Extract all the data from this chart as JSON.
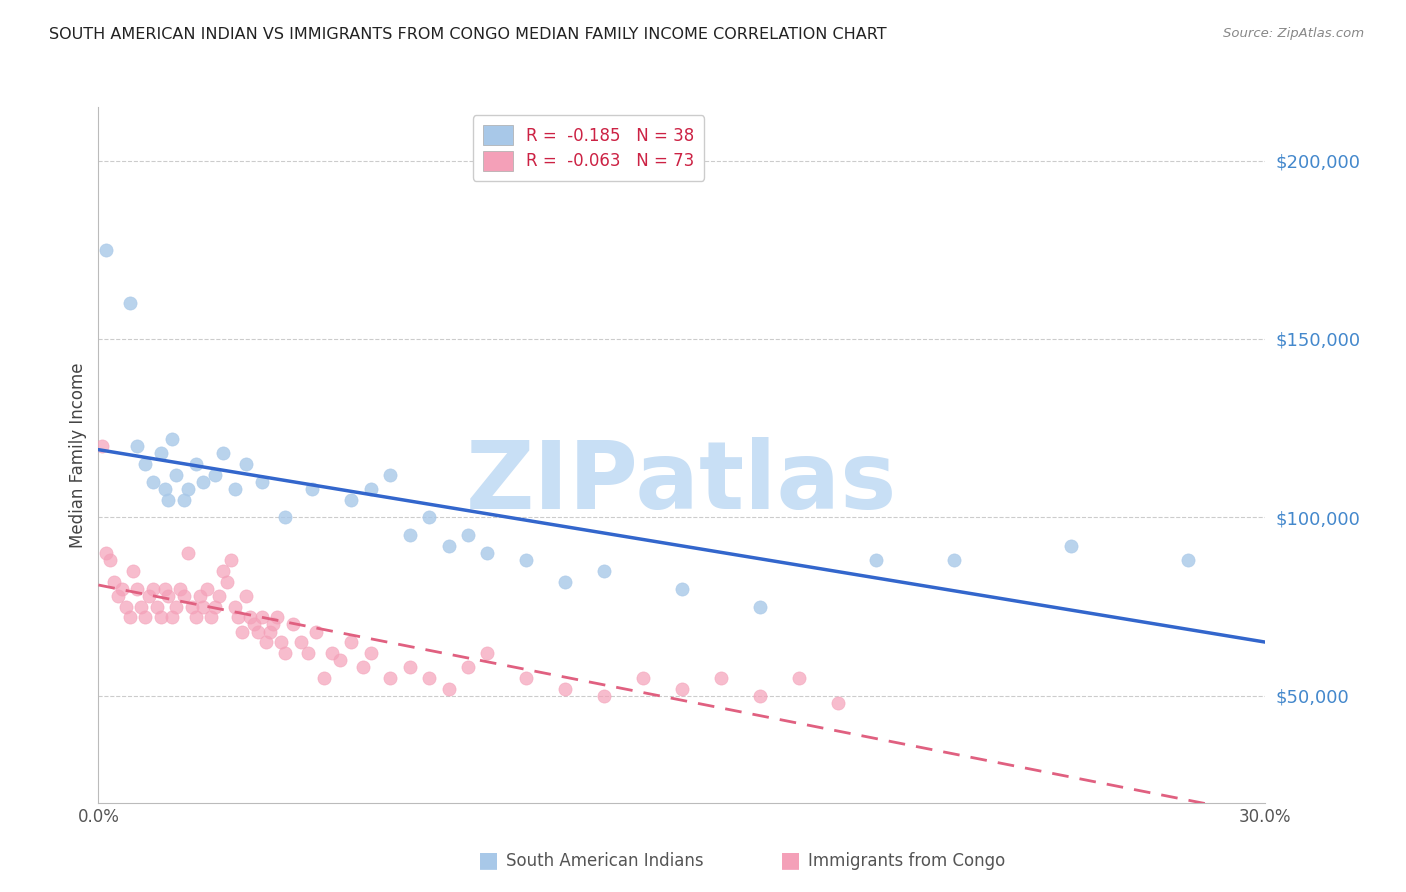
{
  "title": "SOUTH AMERICAN INDIAN VS IMMIGRANTS FROM CONGO MEDIAN FAMILY INCOME CORRELATION CHART",
  "source": "Source: ZipAtlas.com",
  "ylabel": "Median Family Income",
  "ytick_labels": [
    "$50,000",
    "$100,000",
    "$150,000",
    "$200,000"
  ],
  "ytick_values": [
    50000,
    100000,
    150000,
    200000
  ],
  "ymin": 20000,
  "ymax": 215000,
  "xmin": 0.0,
  "xmax": 0.3,
  "series1_name": "South American Indians",
  "series2_name": "Immigrants from Congo",
  "series1_color": "#a8c8e8",
  "series2_color": "#f4a0b8",
  "series1_line_color": "#3366cc",
  "series2_line_color": "#e06080",
  "watermark": "ZIPatlas",
  "watermark_color": "#c8dff5",
  "background_color": "#ffffff",
  "grid_color": "#cccccc",
  "title_color": "#222222",
  "right_label_color": "#4488cc",
  "legend_r1": "R =  -0.185",
  "legend_n1": "N = 38",
  "legend_r2": "R =  -0.063",
  "legend_n2": "N = 73",
  "series1_x": [
    0.002,
    0.008,
    0.01,
    0.012,
    0.014,
    0.016,
    0.017,
    0.018,
    0.019,
    0.02,
    0.022,
    0.023,
    0.025,
    0.027,
    0.03,
    0.032,
    0.035,
    0.038,
    0.042,
    0.048,
    0.055,
    0.065,
    0.07,
    0.075,
    0.08,
    0.085,
    0.09,
    0.095,
    0.1,
    0.11,
    0.12,
    0.13,
    0.15,
    0.17,
    0.2,
    0.22,
    0.25,
    0.28
  ],
  "series1_y": [
    175000,
    160000,
    120000,
    115000,
    110000,
    118000,
    108000,
    105000,
    122000,
    112000,
    105000,
    108000,
    115000,
    110000,
    112000,
    118000,
    108000,
    115000,
    110000,
    100000,
    108000,
    105000,
    108000,
    112000,
    95000,
    100000,
    92000,
    95000,
    90000,
    88000,
    82000,
    85000,
    80000,
    75000,
    88000,
    88000,
    92000,
    88000
  ],
  "series2_x": [
    0.001,
    0.002,
    0.003,
    0.004,
    0.005,
    0.006,
    0.007,
    0.008,
    0.009,
    0.01,
    0.011,
    0.012,
    0.013,
    0.014,
    0.015,
    0.016,
    0.017,
    0.018,
    0.019,
    0.02,
    0.021,
    0.022,
    0.023,
    0.024,
    0.025,
    0.026,
    0.027,
    0.028,
    0.029,
    0.03,
    0.031,
    0.032,
    0.033,
    0.034,
    0.035,
    0.036,
    0.037,
    0.038,
    0.039,
    0.04,
    0.041,
    0.042,
    0.043,
    0.044,
    0.045,
    0.046,
    0.047,
    0.048,
    0.05,
    0.052,
    0.054,
    0.056,
    0.058,
    0.06,
    0.062,
    0.065,
    0.068,
    0.07,
    0.075,
    0.08,
    0.085,
    0.09,
    0.095,
    0.1,
    0.11,
    0.12,
    0.13,
    0.14,
    0.15,
    0.16,
    0.17,
    0.18,
    0.19
  ],
  "series2_y": [
    120000,
    90000,
    88000,
    82000,
    78000,
    80000,
    75000,
    72000,
    85000,
    80000,
    75000,
    72000,
    78000,
    80000,
    75000,
    72000,
    80000,
    78000,
    72000,
    75000,
    80000,
    78000,
    90000,
    75000,
    72000,
    78000,
    75000,
    80000,
    72000,
    75000,
    78000,
    85000,
    82000,
    88000,
    75000,
    72000,
    68000,
    78000,
    72000,
    70000,
    68000,
    72000,
    65000,
    68000,
    70000,
    72000,
    65000,
    62000,
    70000,
    65000,
    62000,
    68000,
    55000,
    62000,
    60000,
    65000,
    58000,
    62000,
    55000,
    58000,
    55000,
    52000,
    58000,
    62000,
    55000,
    52000,
    50000,
    55000,
    52000,
    55000,
    50000,
    55000,
    48000
  ]
}
